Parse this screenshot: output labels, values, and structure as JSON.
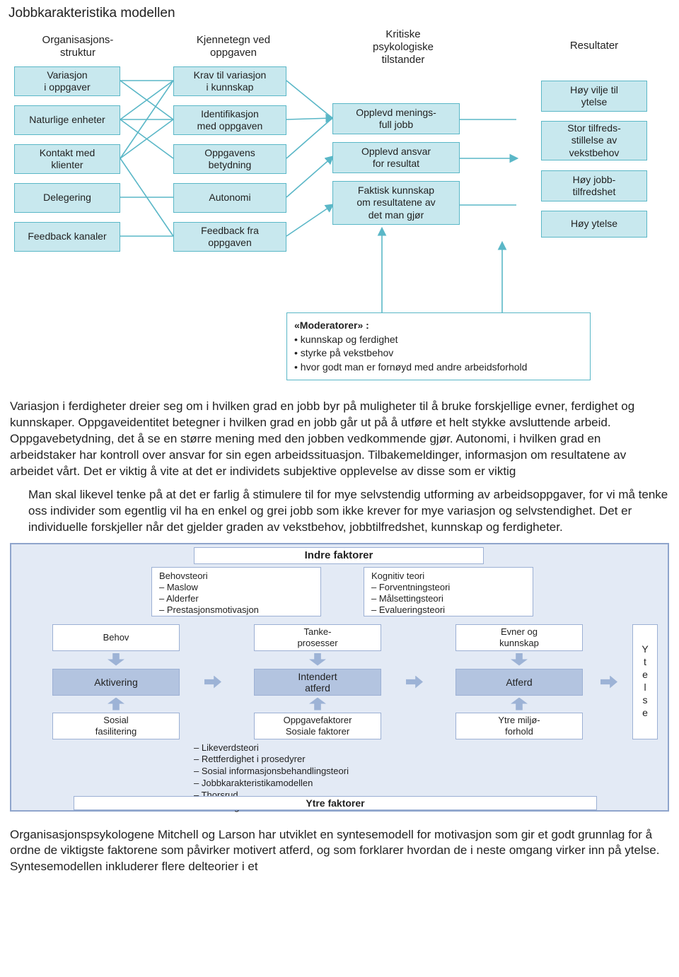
{
  "colors": {
    "box_fill": "#c8e8ee",
    "box_border": "#5ab7c7",
    "connector": "#5ab7c7",
    "d2_bg": "#e3eaf5",
    "d2_border": "#8fa5cc",
    "d2_mid": "#b3c4e0",
    "d2_arrow": "#9db3d6"
  },
  "page_title": "Jobbkarakteristika modellen",
  "diagram1": {
    "headers": {
      "col1": "Organisasjons-\nstruktur",
      "col2": "Kjennetegn ved\noppgaven",
      "col3": "Kritiske\npsykologiske\ntilstander",
      "col4": "Resultater"
    },
    "col1": [
      "Variasjon\ni oppgaver",
      "Naturlige enheter",
      "Kontakt med\nklienter",
      "Delegering",
      "Feedback kanaler"
    ],
    "col2": [
      "Krav til variasjon\ni kunnskap",
      "Identifikasjon\nmed oppgaven",
      "Oppgavens\nbetydning",
      "Autonomi",
      "Feedback fra\noppgaven"
    ],
    "col3": [
      "Opplevd menings-\nfull jobb",
      "Opplevd ansvar\nfor resultat",
      "Faktisk kunnskap\nom resultatene av\ndet man gjør"
    ],
    "col4": [
      "Høy vilje til\nytelse",
      "Stor tilfreds-\nstillelse av\nvekstbehov",
      "Høy jobb-\ntilfredshet",
      "Høy ytelse"
    ],
    "moderators": {
      "title": "«Moderatorer» :",
      "items": [
        "kunnskap og ferdighet",
        "styrke på vekstbehov",
        "hvor godt man er fornøyd med andre arbeidsforhold"
      ]
    }
  },
  "paragraphs": {
    "p1": "Variasjon i ferdigheter dreier seg om i hvilken grad en jobb byr på muligheter til å bruke forskjellige evner, ferdighet og kunnskaper. Oppgaveidentitet betegner i hvilken grad en jobb går ut på å utføre et helt stykke avsluttende arbeid. Oppgavebetydning, det å se en større mening med den jobben vedkommende gjør. Autonomi, i hvilken grad en arbeidstaker har kontroll over ansvar for sin egen arbeidssituasjon. Tilbakemeldinger, informasjon om resultatene av arbeidet vårt. Det er viktig å vite at det er individets subjektive opplevelse av disse som er viktig",
    "p2": "Man skal likevel tenke på at det er farlig å stimulere til for mye selvstendig utforming av arbeidsoppgaver, for vi må tenke oss individer som egentlig vil ha en enkel og grei jobb som ikke krever for mye variasjon og selvstendighet. Det er individuelle forskjeller når det gjelder graden av vekstbehov, jobbtilfredshet, kunnskap og ferdigheter.",
    "p3": "Organisasjonspsykologene Mitchell og Larson har utviklet en syntesemodell for motivasjon som gir et godt grunnlag for å ordne de viktigste faktorene som påvirker motivert atferd, og som forklarer hvordan de i neste omgang virker inn på ytelse. Syntesemodellen inkluderer flere delteorier i et"
  },
  "diagram2": {
    "top_title": "Indre faktorer",
    "bottom_title": "Ytre faktorer",
    "ytelse": "Ytelse",
    "top_left_box": {
      "title": "Behovsteori",
      "items": [
        "– Maslow",
        "– Alderfer",
        "– Prestasjonsmotivasjon"
      ]
    },
    "top_right_box": {
      "title": "Kognitiv teori",
      "items": [
        "– Forventningsteori",
        "– Målsettingsteori",
        "– Evalueringsteori"
      ]
    },
    "row1": [
      "Behov",
      "Tanke-\nprosesser",
      "Evner og\nkunnskap"
    ],
    "row_mid": [
      "Aktivering",
      "Intendert\natferd",
      "Atferd"
    ],
    "row3": [
      "Sosial\nfasilitering",
      "Oppgavefaktorer\nSosiale faktorer",
      "Ytre miljø-\nforhold"
    ],
    "bottom_list": [
      "– Likeverdsteori",
      "– Rettferdighet i prosedyrer",
      "– Sosial informasjonsbehandlingsteori",
      "– Jobbkarakteristikamodellen",
      "– Thorsrud",
      "– Herzberg"
    ]
  }
}
